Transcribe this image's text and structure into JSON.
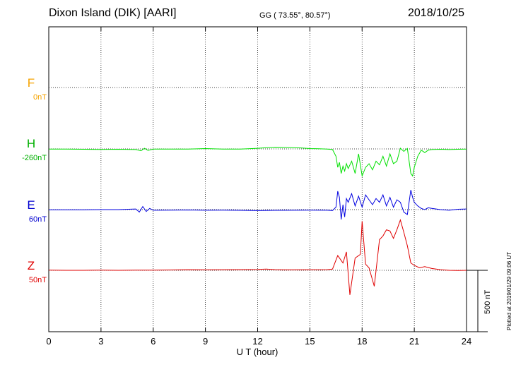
{
  "header": {
    "station": "Dixon Island (DIK)  [AARI]",
    "coords": "GG ( 73.55°,  80.57°)",
    "date": "2018/10/25"
  },
  "components": [
    {
      "letter": "F",
      "offset": "0nT",
      "color": "#f5a300"
    },
    {
      "letter": "H",
      "offset": "-260nT",
      "color": "#00b000"
    },
    {
      "letter": "E",
      "offset": "60nT",
      "color": "#0000d0"
    },
    {
      "letter": "Z",
      "offset": "50nT",
      "color": "#e00000"
    }
  ],
  "scale_label": "500 nT",
  "plotted_label": "Plotted at 2019/01/29 09:06 UT",
  "chart_data": {
    "type": "line",
    "xlabel": "U T (hour)",
    "xlim": [
      0,
      24
    ],
    "xticks": [
      0,
      3,
      6,
      9,
      12,
      15,
      18,
      21,
      24
    ],
    "grid": true,
    "series": [
      {
        "name": "H",
        "color": "#00e000",
        "x": [
          0,
          1,
          2,
          3,
          4,
          5,
          5.3,
          5.5,
          5.7,
          6,
          7,
          8,
          9,
          10,
          11,
          12,
          12.5,
          13,
          13.5,
          14,
          14.5,
          15,
          15.5,
          16,
          16.3,
          16.5,
          16.6,
          16.7,
          16.8,
          16.9,
          17,
          17.1,
          17.2,
          17.4,
          17.6,
          17.8,
          18,
          18.2,
          18.4,
          18.6,
          18.8,
          19,
          19.2,
          19.4,
          19.6,
          19.8,
          20,
          20.2,
          20.4,
          20.6,
          20.8,
          20.9,
          21,
          21.2,
          21.4,
          21.6,
          21.8,
          22,
          22.5,
          23,
          23.5,
          24
        ],
        "y": [
          -2,
          -2,
          -3,
          -4,
          -3,
          -5,
          -15,
          5,
          -12,
          -2,
          -1,
          -1,
          3,
          -1,
          -2,
          5,
          10,
          13,
          12,
          10,
          8,
          3,
          1,
          -1,
          -5,
          -60,
          -150,
          -110,
          -200,
          -140,
          -180,
          -120,
          -160,
          -100,
          -200,
          -40,
          -220,
          -150,
          -120,
          -170,
          -100,
          -130,
          -60,
          -140,
          -40,
          -120,
          -100,
          6,
          -20,
          4,
          -200,
          -220,
          -150,
          -60,
          -10,
          -30,
          -10,
          -5,
          -3,
          -5,
          -3,
          -1
        ]
      },
      {
        "name": "E",
        "color": "#0000e0",
        "x": [
          0,
          1,
          2,
          3,
          4,
          5,
          5.2,
          5.4,
          5.6,
          5.8,
          6,
          7,
          8,
          9,
          10,
          11,
          12,
          13,
          14,
          15,
          16,
          16.3,
          16.5,
          16.6,
          16.7,
          16.8,
          16.9,
          17,
          17.1,
          17.2,
          17.4,
          17.6,
          17.8,
          18,
          18.2,
          18.4,
          18.6,
          18.8,
          19,
          19.2,
          19.4,
          19.6,
          19.8,
          20,
          20.2,
          20.4,
          20.6,
          20.8,
          20.9,
          21,
          21.2,
          21.4,
          21.6,
          21.8,
          22,
          22.5,
          23,
          23.5,
          24
        ],
        "y": [
          -2,
          -2,
          -1,
          0,
          0,
          5,
          -20,
          25,
          -15,
          10,
          -5,
          -4,
          -3,
          -5,
          -4,
          -6,
          -8,
          -6,
          -5,
          -4,
          -5,
          -8,
          20,
          150,
          100,
          -80,
          40,
          -60,
          90,
          60,
          130,
          30,
          110,
          20,
          120,
          80,
          40,
          90,
          60,
          120,
          30,
          100,
          20,
          80,
          60,
          -20,
          -40,
          160,
          100,
          60,
          30,
          10,
          0,
          15,
          10,
          0,
          -5,
          3,
          5
        ]
      },
      {
        "name": "Z",
        "color": "#e00000",
        "x": [
          0,
          1,
          2,
          3,
          4,
          5,
          6,
          7,
          8,
          9,
          10,
          11,
          12,
          12.5,
          13,
          13.5,
          14,
          15,
          16,
          16.3,
          16.6,
          16.9,
          17.1,
          17.3,
          17.6,
          17.9,
          18,
          18.2,
          18.4,
          18.7,
          19,
          19.2,
          19.4,
          19.6,
          19.8,
          20,
          20.2,
          20.4,
          20.6,
          20.8,
          21,
          21.3,
          21.6,
          22,
          22.5,
          23,
          23.5,
          24
        ],
        "y": [
          1,
          0,
          0,
          1,
          0,
          1,
          2,
          3,
          5,
          4,
          5,
          6,
          7,
          10,
          6,
          4,
          4,
          5,
          6,
          10,
          120,
          60,
          150,
          -200,
          100,
          130,
          400,
          50,
          20,
          -130,
          250,
          280,
          330,
          320,
          260,
          330,
          410,
          310,
          200,
          60,
          40,
          20,
          30,
          15,
          5,
          0,
          -2,
          0
        ]
      }
    ]
  }
}
